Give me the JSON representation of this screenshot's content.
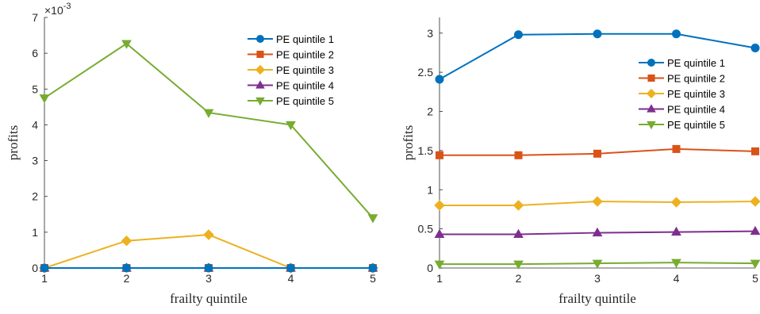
{
  "chart_data": [
    {
      "type": "line",
      "title": "",
      "xlabel": "frailty quintile",
      "ylabel": "profits",
      "y_exponent_label": "×10",
      "y_exponent_power": "-3",
      "xlim": [
        1,
        5
      ],
      "ylim": [
        0,
        0.007
      ],
      "x_ticks": [
        1,
        2,
        3,
        4,
        5
      ],
      "x_tick_labels": [
        "1",
        "2",
        "3",
        "4",
        "5"
      ],
      "y_ticks": [
        0,
        0.001,
        0.002,
        0.003,
        0.004,
        0.005,
        0.006,
        0.007
      ],
      "y_tick_labels": [
        "0",
        "1",
        "2",
        "3",
        "4",
        "5",
        "6",
        "7"
      ],
      "grid": false,
      "legend_position": "top-right",
      "x": [
        1,
        2,
        3,
        4,
        5
      ],
      "series": [
        {
          "name": "PE quintile 1",
          "color": "#0072BD",
          "marker": "circle",
          "values": [
            0,
            0,
            0,
            0,
            0
          ]
        },
        {
          "name": "PE quintile 2",
          "color": "#D95319",
          "marker": "square",
          "values": [
            0,
            0,
            0,
            0,
            0
          ]
        },
        {
          "name": "PE quintile 3",
          "color": "#EDB120",
          "marker": "diamond",
          "values": [
            0,
            0.00076,
            0.00093,
            0,
            0
          ]
        },
        {
          "name": "PE quintile 4",
          "color": "#7E2F8E",
          "marker": "triangle-up",
          "values": [
            0,
            0,
            0,
            0,
            0
          ]
        },
        {
          "name": "PE quintile 5",
          "color": "#77AC30",
          "marker": "triangle-down",
          "values": [
            0.00475,
            0.00627,
            0.00434,
            0.004,
            0.0014
          ]
        }
      ]
    },
    {
      "type": "line",
      "title": "",
      "xlabel": "frailty quintile",
      "ylabel": "profits",
      "xlim": [
        1,
        5
      ],
      "ylim": [
        0,
        3.2
      ],
      "x_ticks": [
        1,
        2,
        3,
        4,
        5
      ],
      "x_tick_labels": [
        "1",
        "2",
        "3",
        "4",
        "5"
      ],
      "y_ticks": [
        0,
        0.5,
        1,
        1.5,
        2,
        2.5,
        3
      ],
      "y_tick_labels": [
        "0",
        "0.5",
        "1",
        "1.5",
        "2",
        "2.5",
        "3"
      ],
      "grid": false,
      "legend_position": "top-right",
      "x": [
        1,
        2,
        3,
        4,
        5
      ],
      "series": [
        {
          "name": "PE quintile 1",
          "color": "#0072BD",
          "marker": "circle",
          "values": [
            2.41,
            2.98,
            2.99,
            2.99,
            2.81
          ]
        },
        {
          "name": "PE quintile 2",
          "color": "#D95319",
          "marker": "square",
          "values": [
            1.44,
            1.44,
            1.46,
            1.52,
            1.49
          ]
        },
        {
          "name": "PE quintile 3",
          "color": "#EDB120",
          "marker": "diamond",
          "values": [
            0.8,
            0.8,
            0.85,
            0.84,
            0.85
          ]
        },
        {
          "name": "PE quintile 4",
          "color": "#7E2F8E",
          "marker": "triangle-up",
          "values": [
            0.43,
            0.43,
            0.45,
            0.46,
            0.47
          ]
        },
        {
          "name": "PE quintile 5",
          "color": "#77AC30",
          "marker": "triangle-down",
          "values": [
            0.05,
            0.05,
            0.06,
            0.07,
            0.06
          ]
        }
      ]
    }
  ]
}
